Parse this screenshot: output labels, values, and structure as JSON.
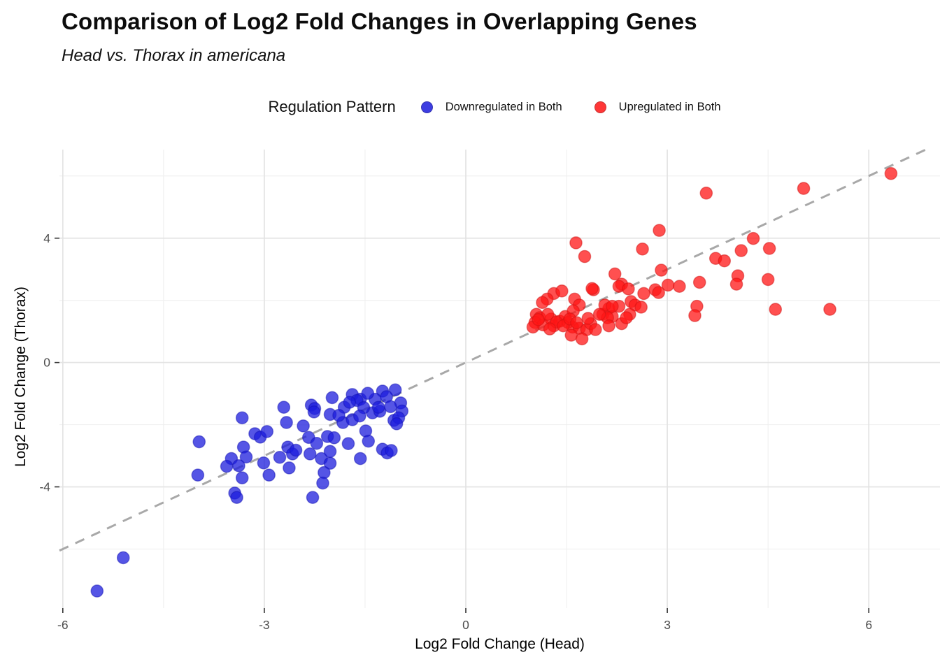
{
  "header": {
    "title": "Comparison of Log2 Fold Changes in Overlapping Genes",
    "subtitle": "Head vs. Thorax in americana"
  },
  "legend": {
    "title": "Regulation Pattern",
    "items": [
      {
        "label": "Downregulated in Both",
        "color": "#1c1cdc"
      },
      {
        "label": "Upregulated in Both",
        "color": "#ff1515"
      }
    ],
    "position": "top-center"
  },
  "colors": {
    "background": "#ffffff",
    "grid_major": "#e3e3e3",
    "grid_minor": "#eeeeee",
    "tick_label": "#4d4d4d",
    "tick_mark": "#333333",
    "identity_line": "#a8a8a8"
  },
  "chart_data": {
    "type": "scatter",
    "title": "Comparison of Log2 Fold Changes in Overlapping Genes",
    "subtitle": "Head vs. Thorax in americana",
    "xlabel": "Log2 Fold Change (Head)",
    "ylabel": "Log2 Fold Change (Thorax)",
    "xlim": [
      -6.05,
      7.06
    ],
    "ylim": [
      -7.9,
      6.85
    ],
    "x_ticks": [
      -6,
      -3,
      0,
      3,
      6
    ],
    "y_ticks": [
      4,
      0,
      -4
    ],
    "x_minor": [
      -4.5,
      -1.5,
      1.5,
      4.5
    ],
    "y_minor": [
      6,
      2,
      -2,
      -6
    ],
    "grid": true,
    "identity_line": {
      "style": "dashed",
      "slope": 1,
      "intercept": 0,
      "color": "#a8a8a8"
    },
    "point_radius": 8.6,
    "series": [
      {
        "name": "Downregulated in Both",
        "color": "#1c1cdc",
        "stroke": "#1414b4",
        "points": [
          [
            -3.33,
            -1.78
          ],
          [
            -2.71,
            -1.44
          ],
          [
            -3.97,
            -2.55
          ],
          [
            -3.31,
            -2.72
          ],
          [
            -3.14,
            -2.29
          ],
          [
            -3.06,
            -2.4
          ],
          [
            -3.27,
            -3.04
          ],
          [
            -3.49,
            -3.09
          ],
          [
            -3.56,
            -3.34
          ],
          [
            -3.38,
            -3.32
          ],
          [
            -3.99,
            -3.62
          ],
          [
            -3.33,
            -3.71
          ],
          [
            -3.01,
            -3.23
          ],
          [
            -2.93,
            -3.62
          ],
          [
            -3.44,
            -4.2
          ],
          [
            -3.41,
            -4.34
          ],
          [
            -2.67,
            -1.93
          ],
          [
            -2.65,
            -2.72
          ],
          [
            -2.58,
            -2.94
          ],
          [
            -2.63,
            -3.39
          ],
          [
            -2.3,
            -1.37
          ],
          [
            -1.99,
            -1.13
          ],
          [
            -1.69,
            -1.03
          ],
          [
            -1.57,
            -1.18
          ],
          [
            -1.24,
            -0.92
          ],
          [
            -1.05,
            -0.88
          ],
          [
            -0.97,
            -1.3
          ],
          [
            -1.81,
            -1.44
          ],
          [
            -2.25,
            -1.48
          ],
          [
            -2.02,
            -1.67
          ],
          [
            -1.83,
            -1.93
          ],
          [
            -2.06,
            -2.38
          ],
          [
            -1.96,
            -2.42
          ],
          [
            -1.75,
            -2.61
          ],
          [
            -1.49,
            -2.2
          ],
          [
            -1.45,
            -2.53
          ],
          [
            -1.24,
            -2.79
          ],
          [
            -1.17,
            -2.91
          ],
          [
            -1.57,
            -3.09
          ],
          [
            -2.15,
            -3.09
          ],
          [
            -2.02,
            -3.24
          ],
          [
            -2.11,
            -3.54
          ],
          [
            -2.13,
            -3.88
          ],
          [
            -2.28,
            -4.34
          ],
          [
            -1.07,
            -1.86
          ],
          [
            -1.39,
            -1.62
          ],
          [
            -0.95,
            -1.56
          ],
          [
            -1.0,
            -1.78
          ],
          [
            -1.03,
            -1.97
          ],
          [
            -1.11,
            -2.83
          ],
          [
            -2.26,
            -1.59
          ],
          [
            -2.42,
            -2.04
          ],
          [
            -1.89,
            -1.7
          ],
          [
            -2.34,
            -2.41
          ],
          [
            -2.22,
            -2.6
          ],
          [
            -2.53,
            -2.82
          ],
          [
            -2.32,
            -2.94
          ],
          [
            -2.02,
            -2.86
          ],
          [
            -2.77,
            -3.05
          ],
          [
            -2.96,
            -2.22
          ],
          [
            -5.1,
            -6.28
          ],
          [
            -5.49,
            -7.35
          ],
          [
            -1.62,
            -1.22
          ],
          [
            -1.52,
            -1.45
          ],
          [
            -1.35,
            -1.18
          ],
          [
            -1.69,
            -1.84
          ],
          [
            -1.28,
            -1.57
          ],
          [
            -1.46,
            -0.99
          ],
          [
            -1.58,
            -1.72
          ],
          [
            -1.73,
            -1.28
          ],
          [
            -1.3,
            -1.44
          ],
          [
            -1.18,
            -1.1
          ],
          [
            -1.12,
            -1.42
          ]
        ]
      },
      {
        "name": "Upregulated in Both",
        "color": "#ff1515",
        "stroke": "#d01212",
        "points": [
          [
            1.31,
            2.22
          ],
          [
            1.43,
            2.3
          ],
          [
            1.21,
            2.04
          ],
          [
            1.14,
            1.93
          ],
          [
            1.9,
            2.34
          ],
          [
            1.62,
            2.04
          ],
          [
            1.69,
            1.85
          ],
          [
            1.05,
            1.55
          ],
          [
            1.1,
            1.44
          ],
          [
            1.03,
            1.29
          ],
          [
            1.15,
            1.21
          ],
          [
            1.0,
            1.14
          ],
          [
            1.27,
            1.4
          ],
          [
            1.31,
            1.18
          ],
          [
            1.4,
            1.33
          ],
          [
            1.48,
            1.48
          ],
          [
            1.52,
            1.29
          ],
          [
            1.59,
            1.14
          ],
          [
            1.69,
            1.1
          ],
          [
            1.8,
            1.06
          ],
          [
            1.86,
            1.25
          ],
          [
            1.93,
            1.06
          ],
          [
            2.04,
            1.55
          ],
          [
            2.13,
            1.74
          ],
          [
            2.18,
            1.48
          ],
          [
            2.28,
            1.81
          ],
          [
            2.32,
            1.25
          ],
          [
            1.6,
            1.66
          ],
          [
            1.57,
            0.88
          ],
          [
            1.73,
            0.76
          ],
          [
            2.91,
            2.97
          ],
          [
            2.32,
            2.52
          ],
          [
            3.01,
            2.49
          ],
          [
            3.18,
            2.45
          ],
          [
            3.48,
            2.58
          ],
          [
            2.65,
            2.22
          ],
          [
            2.82,
            2.34
          ],
          [
            2.87,
            2.25
          ],
          [
            2.46,
            1.96
          ],
          [
            2.52,
            1.85
          ],
          [
            2.61,
            1.78
          ],
          [
            2.44,
            1.55
          ],
          [
            2.39,
            1.44
          ],
          [
            3.44,
            1.81
          ],
          [
            3.41,
            1.51
          ],
          [
            6.33,
            6.08
          ],
          [
            5.03,
            5.6
          ],
          [
            4.28,
            3.99
          ],
          [
            4.52,
            3.67
          ],
          [
            4.1,
            3.6
          ],
          [
            4.5,
            2.67
          ],
          [
            4.61,
            1.71
          ],
          [
            5.42,
            1.71
          ],
          [
            3.58,
            5.45
          ],
          [
            2.88,
            4.25
          ],
          [
            1.64,
            3.85
          ],
          [
            1.77,
            3.41
          ],
          [
            2.63,
            3.65
          ],
          [
            3.72,
            3.35
          ],
          [
            3.85,
            3.27
          ],
          [
            2.22,
            2.85
          ],
          [
            2.28,
            2.45
          ],
          [
            4.05,
            2.79
          ],
          [
            4.03,
            2.52
          ],
          [
            1.88,
            2.38
          ],
          [
            2.42,
            2.37
          ],
          [
            2.07,
            1.85
          ],
          [
            2.18,
            1.81
          ],
          [
            2.11,
            1.44
          ],
          [
            2.13,
            1.18
          ],
          [
            1.99,
            1.55
          ],
          [
            1.22,
            1.55
          ],
          [
            1.35,
            1.3
          ],
          [
            1.45,
            1.18
          ],
          [
            1.55,
            1.4
          ],
          [
            1.25,
            1.08
          ],
          [
            1.65,
            1.28
          ],
          [
            1.82,
            1.42
          ],
          [
            1.08,
            1.38
          ]
        ]
      }
    ]
  }
}
